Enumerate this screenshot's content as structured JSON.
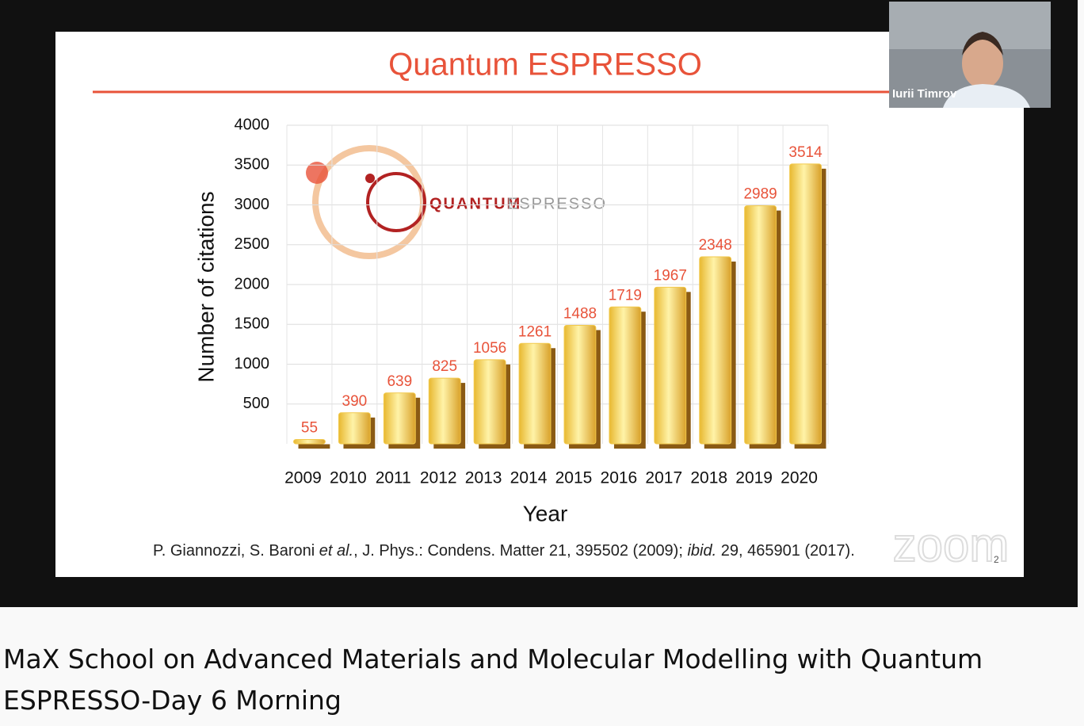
{
  "video": {
    "participant": "Iurii Timrov",
    "watermark": "zoom"
  },
  "slide": {
    "logo_text_bold": "QUANTUM",
    "logo_text_light": "ESPRESSO",
    "citation_1": "P. Giannozzi, S. Baroni ",
    "citation_em": "et al.",
    "citation_2": ", J. Phys.: Condens. Matter 21, 395502 (2009); ",
    "citation_em2": "ibid.",
    "citation_3": " 29, 465901 (2017).",
    "number": "2"
  },
  "page": {
    "title": "MaX School on Advanced Materials and Molecular Modelling with Quantum ESPRESSO-Day 6 Morning"
  },
  "chart_data": {
    "type": "bar",
    "title": "Quantum ESPRESSO",
    "x_label": "Year",
    "y_label": "Number of citations",
    "categories": [
      "2009",
      "2010",
      "2011",
      "2012",
      "2013",
      "2014",
      "2015",
      "2016",
      "2017",
      "2018",
      "2019",
      "2020"
    ],
    "values": [
      55,
      390,
      639,
      825,
      1056,
      1261,
      1488,
      1719,
      1967,
      2348,
      2989,
      3514
    ],
    "color": "#f2c94c",
    "label_color": "#e8533a",
    "ylim": [
      0,
      4000
    ],
    "yticks": [
      500,
      1000,
      1500,
      2000,
      2500,
      3000,
      3500,
      4000
    ],
    "grid": true
  }
}
